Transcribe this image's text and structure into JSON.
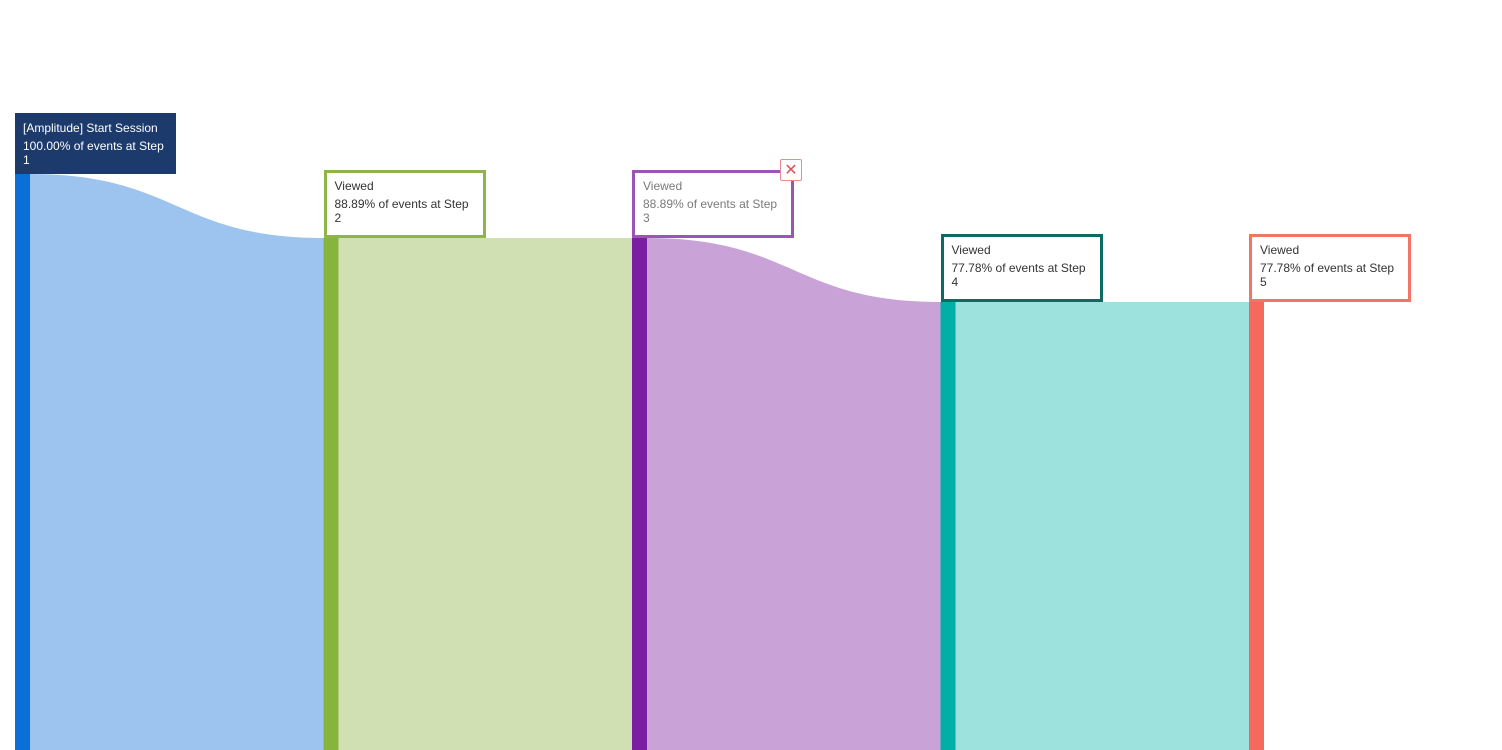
{
  "chart_data": {
    "type": "sankey",
    "steps": [
      {
        "step": 1,
        "event": "[Amplitude] Start Session",
        "percent_label": "100.00% of events at Step 1",
        "percent": 100.0,
        "node_color": "#0a6fd6",
        "link_color": "#9cc4ee",
        "label_style": "filled",
        "label_bg": "#1c3a6b"
      },
      {
        "step": 2,
        "event": "Viewed",
        "percent_label": "88.89% of events at Step 2",
        "percent": 88.89,
        "node_color": "#87b43c",
        "link_color": "#d1e0b3",
        "label_style": "outline",
        "label_border": "#8db548"
      },
      {
        "step": 3,
        "event": "Viewed",
        "percent_label": "88.89% of events at Step 3",
        "percent": 88.89,
        "node_color": "#7a1fa2",
        "link_color": "#c9a3d8",
        "label_style": "outline",
        "label_border": "#9a55b8",
        "dimmed": true,
        "removable": true
      },
      {
        "step": 4,
        "event": "Viewed",
        "percent_label": "77.78% of events at Step 4",
        "percent": 77.78,
        "node_color": "#00b0a6",
        "link_color": "#9de2dd",
        "label_style": "outline",
        "label_border": "#0e6b63"
      },
      {
        "step": 5,
        "event": "Viewed",
        "percent_label": "77.78% of events at Step 5",
        "percent": 77.78,
        "node_color": "#f56a5c",
        "label_style": "outline",
        "label_border": "#f27567"
      }
    ]
  },
  "controls": {
    "remove_step_icon": "close-icon",
    "remove_step_glyph": "✕"
  }
}
